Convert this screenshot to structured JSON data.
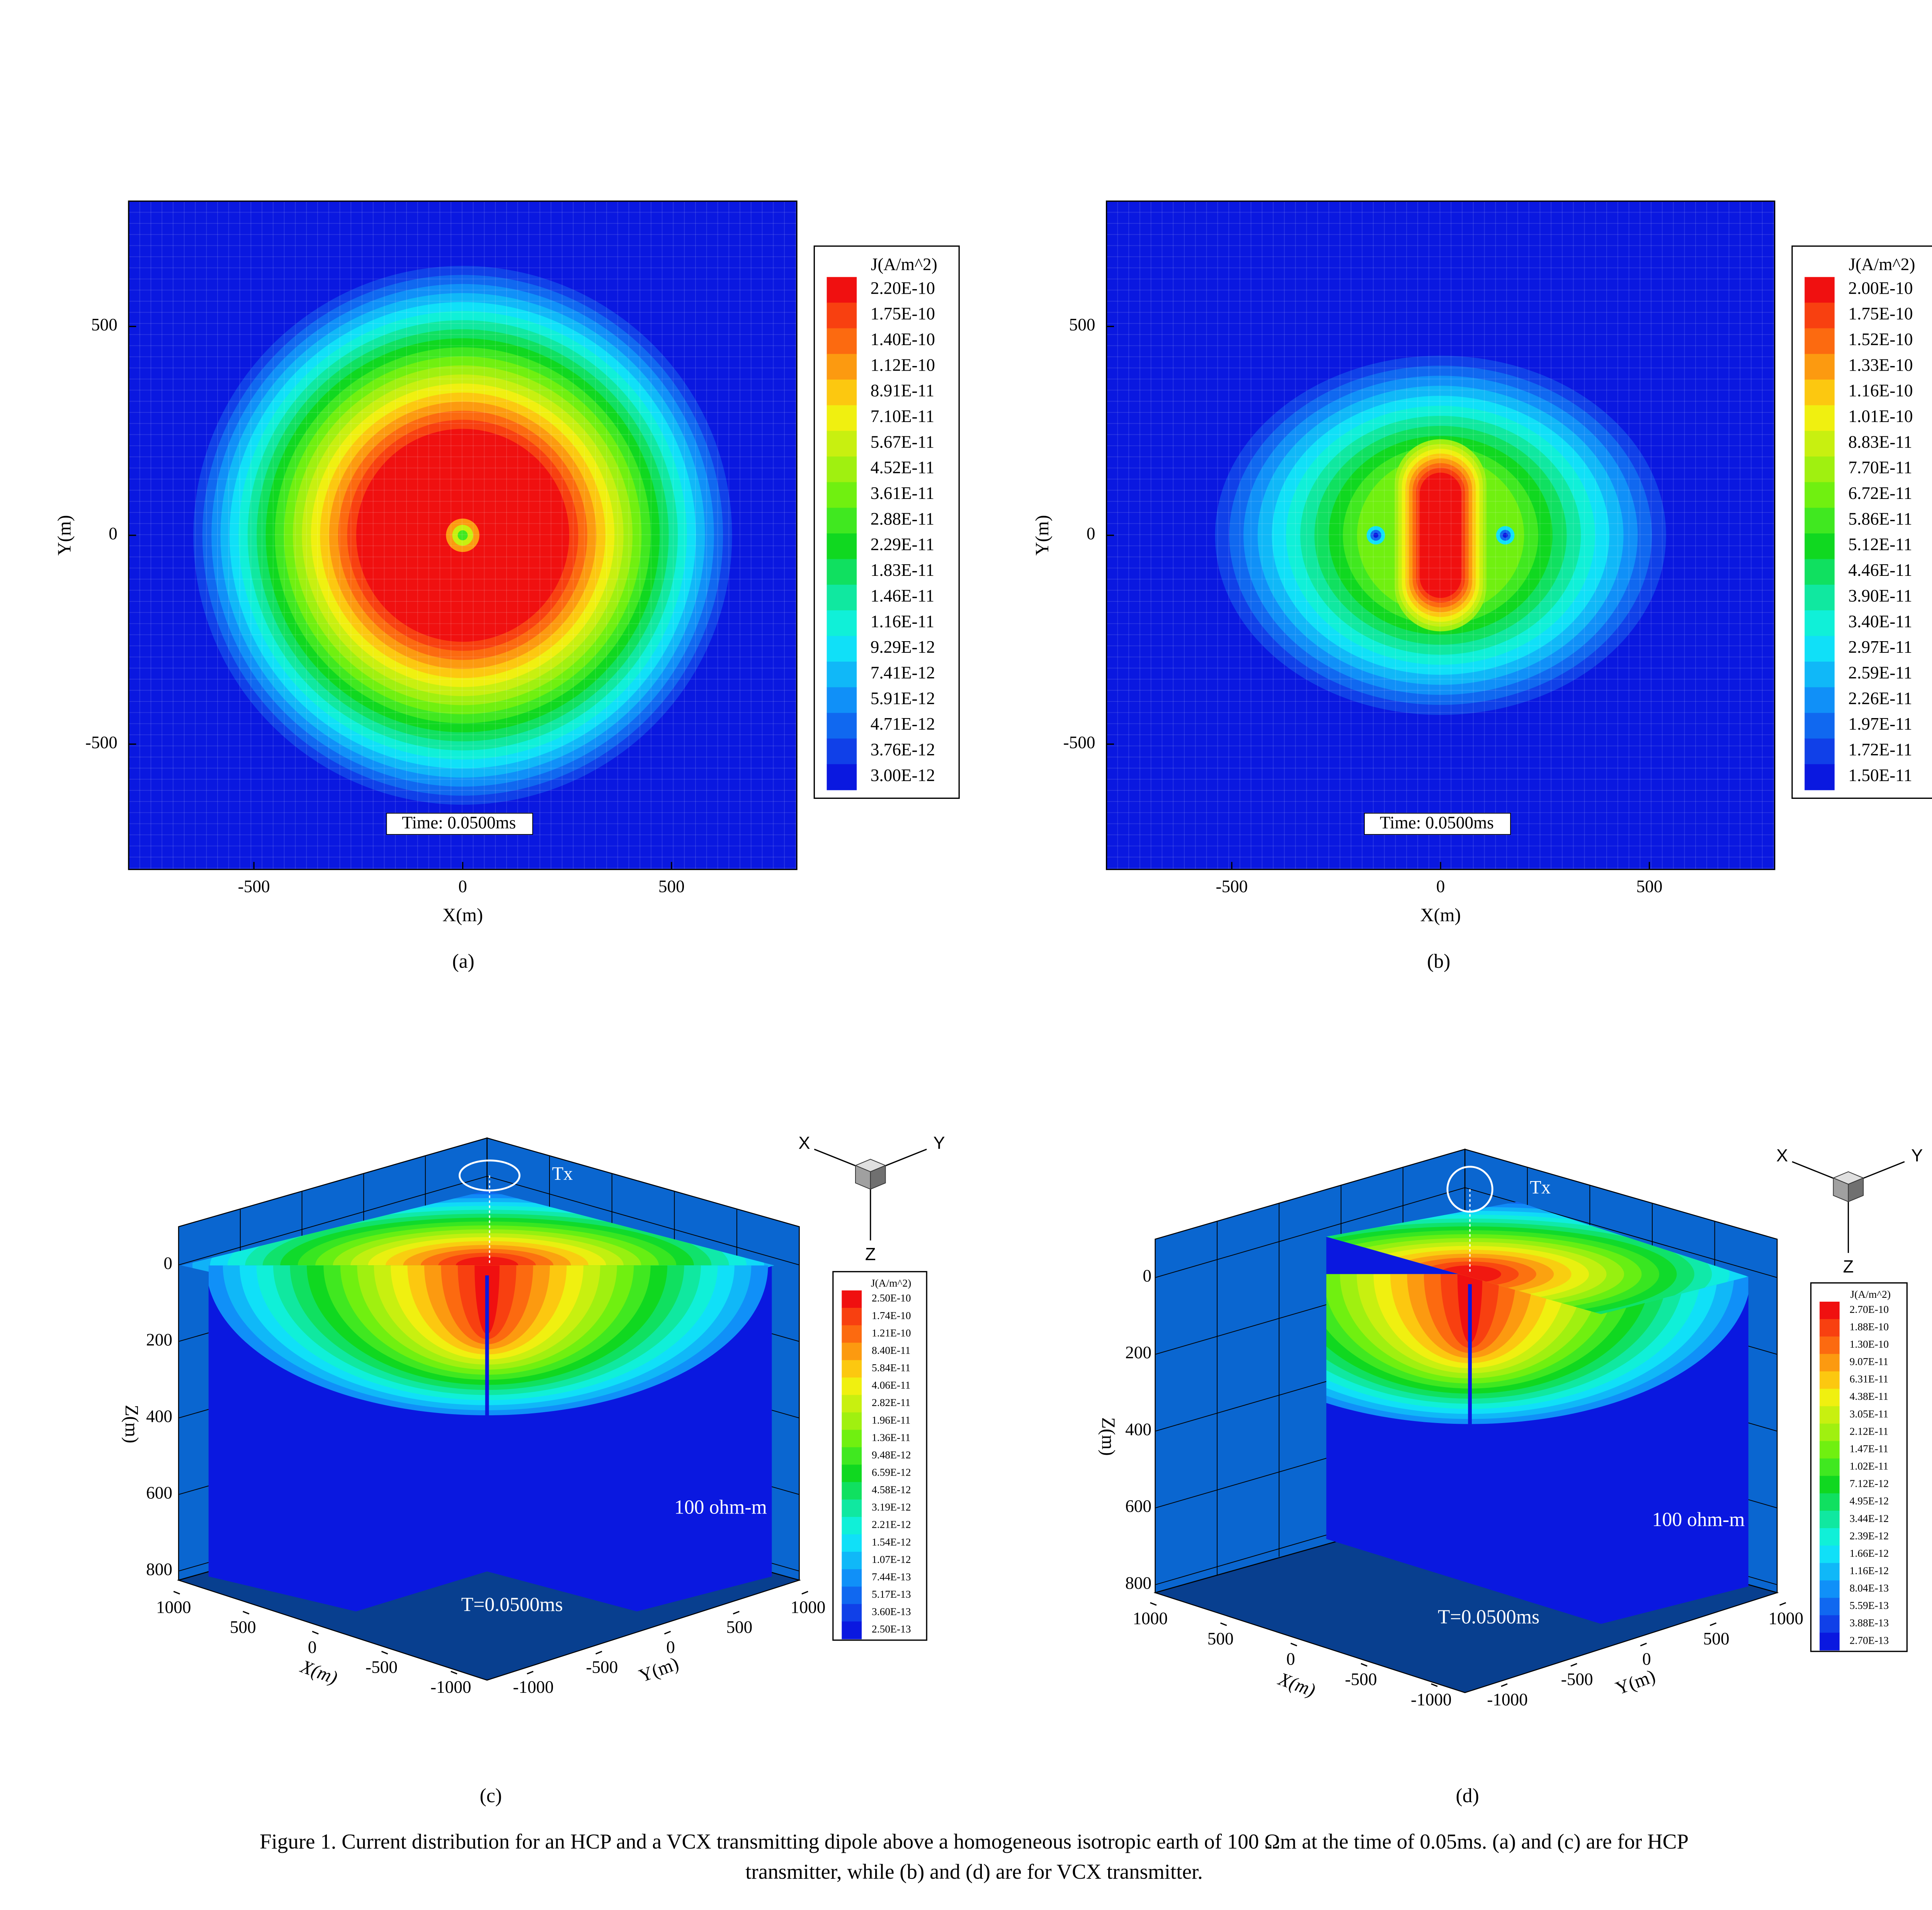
{
  "chart_data": [
    {
      "type": "contour",
      "panel": "(a)",
      "x_label": "X(m)",
      "y_label": "Y(m)",
      "time_label": "Time: 0.0500ms",
      "xlim": [
        -800,
        800
      ],
      "ylim": [
        -800,
        800
      ],
      "xticks": [
        -500,
        0,
        500
      ],
      "yticks": [
        -500,
        0,
        500
      ],
      "legend_title": "J(A/m^2)",
      "levels": [
        {
          "value": 2.2e-10,
          "label": "2.20E-10"
        },
        {
          "value": 1.75e-10,
          "label": "1.75E-10"
        },
        {
          "value": 1.4e-10,
          "label": "1.40E-10"
        },
        {
          "value": 1.12e-10,
          "label": "1.12E-10"
        },
        {
          "value": 8.91e-11,
          "label": "8.91E-11"
        },
        {
          "value": 7.1e-11,
          "label": "7.10E-11"
        },
        {
          "value": 5.67e-11,
          "label": "5.67E-11"
        },
        {
          "value": 4.52e-11,
          "label": "4.52E-11"
        },
        {
          "value": 3.61e-11,
          "label": "3.61E-11"
        },
        {
          "value": 2.88e-11,
          "label": "2.88E-11"
        },
        {
          "value": 2.29e-11,
          "label": "2.29E-11"
        },
        {
          "value": 1.83e-11,
          "label": "1.83E-11"
        },
        {
          "value": 1.46e-11,
          "label": "1.46E-11"
        },
        {
          "value": 1.16e-11,
          "label": "1.16E-11"
        },
        {
          "value": 9.29e-12,
          "label": "9.29E-12"
        },
        {
          "value": 7.41e-12,
          "label": "7.41E-12"
        },
        {
          "value": 5.91e-12,
          "label": "5.91E-12"
        },
        {
          "value": 4.71e-12,
          "label": "4.71E-12"
        },
        {
          "value": 3.76e-12,
          "label": "3.76E-12"
        },
        {
          "value": 3e-12,
          "label": "3.00E-12"
        }
      ],
      "colors": [
        "#f01010",
        "#f84010",
        "#fc6a10",
        "#fc9a10",
        "#fcc810",
        "#f0f010",
        "#c8f010",
        "#a0f010",
        "#70f010",
        "#40e820",
        "#10d820",
        "#10e060",
        "#10e8a0",
        "#10f0d8",
        "#10e0f8",
        "#10b8f8",
        "#1090f8",
        "#1068f0",
        "#1040e8",
        "#0a18e0"
      ]
    },
    {
      "type": "contour",
      "panel": "(b)",
      "x_label": "X(m)",
      "y_label": "Y(m)",
      "time_label": "Time: 0.0500ms",
      "xlim": [
        -800,
        800
      ],
      "ylim": [
        -800,
        800
      ],
      "xticks": [
        -500,
        0,
        500
      ],
      "yticks": [
        -500,
        0,
        500
      ],
      "legend_title": "J(A/m^2)",
      "levels": [
        {
          "value": 2e-10,
          "label": "2.00E-10"
        },
        {
          "value": 1.75e-10,
          "label": "1.75E-10"
        },
        {
          "value": 1.52e-10,
          "label": "1.52E-10"
        },
        {
          "value": 1.33e-10,
          "label": "1.33E-10"
        },
        {
          "value": 1.16e-10,
          "label": "1.16E-10"
        },
        {
          "value": 1.01e-10,
          "label": "1.01E-10"
        },
        {
          "value": 8.83e-11,
          "label": "8.83E-11"
        },
        {
          "value": 7.7e-11,
          "label": "7.70E-11"
        },
        {
          "value": 6.72e-11,
          "label": "6.72E-11"
        },
        {
          "value": 5.86e-11,
          "label": "5.86E-11"
        },
        {
          "value": 5.12e-11,
          "label": "5.12E-11"
        },
        {
          "value": 4.46e-11,
          "label": "4.46E-11"
        },
        {
          "value": 3.9e-11,
          "label": "3.90E-11"
        },
        {
          "value": 3.4e-11,
          "label": "3.40E-11"
        },
        {
          "value": 2.97e-11,
          "label": "2.97E-11"
        },
        {
          "value": 2.59e-11,
          "label": "2.59E-11"
        },
        {
          "value": 2.26e-11,
          "label": "2.26E-11"
        },
        {
          "value": 1.97e-11,
          "label": "1.97E-11"
        },
        {
          "value": 1.72e-11,
          "label": "1.72E-11"
        },
        {
          "value": 1.5e-11,
          "label": "1.50E-11"
        }
      ],
      "colors": [
        "#f01010",
        "#f84010",
        "#fc6a10",
        "#fc9a10",
        "#fcc810",
        "#f0f010",
        "#c8f010",
        "#a0f010",
        "#70f010",
        "#40e820",
        "#10d820",
        "#10e060",
        "#10e8a0",
        "#10f0d8",
        "#10e0f8",
        "#10b8f8",
        "#1090f8",
        "#1068f0",
        "#1040e8",
        "#0a18e0"
      ]
    },
    {
      "type": "contour3d",
      "panel": "(c)",
      "x_label": "X(m)",
      "y_label": "Y(m)",
      "z_label": "Z(m)",
      "source_label": "Tx",
      "medium_label": "100 ohm-m",
      "time_label": "T=0.0500ms",
      "orientation": [
        "X",
        "Y",
        "Z"
      ],
      "xlim": [
        -1000,
        1000
      ],
      "ylim": [
        -1000,
        1000
      ],
      "zlim": [
        -100,
        850
      ],
      "xticks": [
        1000,
        500,
        0,
        -500,
        -1000
      ],
      "yticks": [
        -1000,
        -500,
        0,
        500,
        1000
      ],
      "zticks": [
        0,
        200,
        400,
        600,
        800
      ],
      "legend_title": "J(A/m^2)",
      "levels": [
        {
          "value": 2.5e-10,
          "label": "2.50E-10"
        },
        {
          "value": 1.74e-10,
          "label": "1.74E-10"
        },
        {
          "value": 1.21e-10,
          "label": "1.21E-10"
        },
        {
          "value": 8.4e-11,
          "label": "8.40E-11"
        },
        {
          "value": 5.84e-11,
          "label": "5.84E-11"
        },
        {
          "value": 4.06e-11,
          "label": "4.06E-11"
        },
        {
          "value": 2.82e-11,
          "label": "2.82E-11"
        },
        {
          "value": 1.96e-11,
          "label": "1.96E-11"
        },
        {
          "value": 1.36e-11,
          "label": "1.36E-11"
        },
        {
          "value": 9.48e-12,
          "label": "9.48E-12"
        },
        {
          "value": 6.59e-12,
          "label": "6.59E-12"
        },
        {
          "value": 4.58e-12,
          "label": "4.58E-12"
        },
        {
          "value": 3.19e-12,
          "label": "3.19E-12"
        },
        {
          "value": 2.21e-12,
          "label": "2.21E-12"
        },
        {
          "value": 1.54e-12,
          "label": "1.54E-12"
        },
        {
          "value": 1.07e-12,
          "label": "1.07E-12"
        },
        {
          "value": 7.44e-13,
          "label": "7.44E-13"
        },
        {
          "value": 5.17e-13,
          "label": "5.17E-13"
        },
        {
          "value": 3.6e-13,
          "label": "3.60E-13"
        },
        {
          "value": 2.5e-13,
          "label": "2.50E-13"
        }
      ],
      "colors": [
        "#f01010",
        "#f84010",
        "#fc6a10",
        "#fc9a10",
        "#fcc810",
        "#f0f010",
        "#c8f010",
        "#a0f010",
        "#70f010",
        "#40e820",
        "#10d820",
        "#10e060",
        "#10e8a0",
        "#10f0d8",
        "#10e0f8",
        "#10b8f8",
        "#1090f8",
        "#1068f0",
        "#1040e8",
        "#0a18e0"
      ]
    },
    {
      "type": "contour3d",
      "panel": "(d)",
      "x_label": "X(m)",
      "y_label": "Y(m)",
      "z_label": "Z(m)",
      "source_label": "Tx",
      "medium_label": "100 ohm-m",
      "time_label": "T=0.0500ms",
      "orientation": [
        "X",
        "Y",
        "Z"
      ],
      "xlim": [
        -1000,
        1000
      ],
      "ylim": [
        -1000,
        1000
      ],
      "zlim": [
        -100,
        850
      ],
      "xticks": [
        1000,
        500,
        0,
        -500,
        -1000
      ],
      "yticks": [
        -1000,
        -500,
        0,
        500,
        1000
      ],
      "zticks": [
        0,
        200,
        400,
        600,
        800
      ],
      "legend_title": "J(A/m^2)",
      "levels": [
        {
          "value": 2.7e-10,
          "label": "2.70E-10"
        },
        {
          "value": 1.88e-10,
          "label": "1.88E-10"
        },
        {
          "value": 1.3e-10,
          "label": "1.30E-10"
        },
        {
          "value": 9.07e-11,
          "label": "9.07E-11"
        },
        {
          "value": 6.31e-11,
          "label": "6.31E-11"
        },
        {
          "value": 4.38e-11,
          "label": "4.38E-11"
        },
        {
          "value": 3.05e-11,
          "label": "3.05E-11"
        },
        {
          "value": 2.12e-11,
          "label": "2.12E-11"
        },
        {
          "value": 1.47e-11,
          "label": "1.47E-11"
        },
        {
          "value": 1.02e-11,
          "label": "1.02E-11"
        },
        {
          "value": 7.12e-12,
          "label": "7.12E-12"
        },
        {
          "value": 4.95e-12,
          "label": "4.95E-12"
        },
        {
          "value": 3.44e-12,
          "label": "3.44E-12"
        },
        {
          "value": 2.39e-12,
          "label": "2.39E-12"
        },
        {
          "value": 1.66e-12,
          "label": "1.66E-12"
        },
        {
          "value": 1.16e-12,
          "label": "1.16E-12"
        },
        {
          "value": 8.04e-13,
          "label": "8.04E-13"
        },
        {
          "value": 5.59e-13,
          "label": "5.59E-13"
        },
        {
          "value": 3.88e-13,
          "label": "3.88E-13"
        },
        {
          "value": 2.7e-13,
          "label": "2.70E-13"
        }
      ],
      "colors": [
        "#f01010",
        "#f84010",
        "#fc6a10",
        "#fc9a10",
        "#fcc810",
        "#f0f010",
        "#c8f010",
        "#a0f010",
        "#70f010",
        "#40e820",
        "#10d820",
        "#10e060",
        "#10e8a0",
        "#10f0d8",
        "#10e0f8",
        "#10b8f8",
        "#1090f8",
        "#1068f0",
        "#1040e8",
        "#0a18e0"
      ]
    }
  ],
  "caption": [
    "Figure 1. Current distribution for an HCP and a VCX transmitting dipole above a homogeneous isotropic earth of 100 Ωm at the time of 0.05ms. (a) and (c) are for HCP",
    "transmitter, while (b) and (d) are for VCX transmitter."
  ]
}
